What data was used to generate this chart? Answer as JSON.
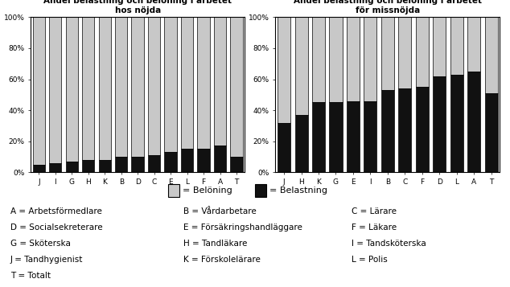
{
  "left_title": "Andel belastning och belöning i arbetet\nhos nöjda",
  "right_title": "Andel belastning och belöning i arbetet\nför missnöjda",
  "left_categories": [
    "J",
    "I",
    "G",
    "H",
    "K",
    "B",
    "D",
    "C",
    "E",
    "L",
    "F",
    "A",
    "T"
  ],
  "right_categories": [
    "J",
    "H",
    "K",
    "G",
    "E",
    "I",
    "B",
    "C",
    "F",
    "D",
    "L",
    "A",
    "T"
  ],
  "left_belastning": [
    5,
    6,
    7,
    8,
    8,
    10,
    10,
    11,
    13,
    15,
    15,
    17,
    10
  ],
  "right_belastning": [
    32,
    37,
    45,
    45,
    46,
    46,
    53,
    54,
    55,
    62,
    63,
    65,
    51
  ],
  "color_beloning": "#c8c8c8",
  "color_belastning": "#111111",
  "legend_beloning": "= Belöning",
  "legend_belastning": "= Belastning",
  "yticks": [
    0,
    20,
    40,
    60,
    80,
    100
  ],
  "ytick_labels": [
    "0%",
    "20%",
    "40%",
    "60%",
    "80%",
    "100%"
  ],
  "bg_color": "#ffffff",
  "bar_edge_color": "#000000",
  "fig_width": 6.34,
  "fig_height": 3.57
}
